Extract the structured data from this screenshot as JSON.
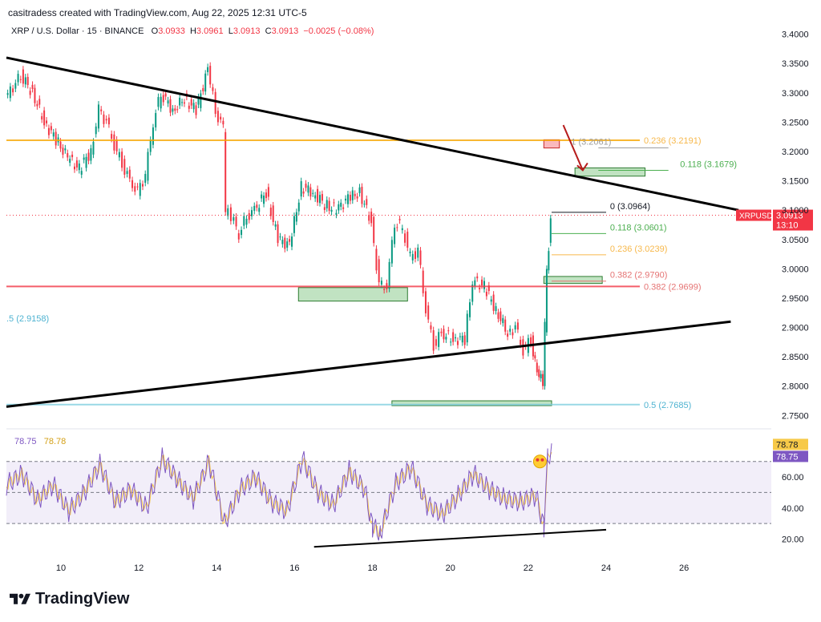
{
  "header": {
    "created_by": "casitradess created with TradingView.com, Aug 22, 2025 12:31 UTC-5"
  },
  "symbol": {
    "title": "XRP / U.S. Dollar · 15 · BINANCE",
    "o_label": "O",
    "o": "3.0933",
    "h_label": "H",
    "h": "3.0961",
    "l_label": "L",
    "l": "3.0913",
    "c_label": "C",
    "c": "3.0913",
    "change": "−0.0025 (−0.08%)"
  },
  "price_badge": {
    "symbol": "XRPUSD",
    "price": "3.0913",
    "countdown": "13:10"
  },
  "rsi": {
    "value1": "78.75",
    "value2": "78.78"
  },
  "footer": {
    "brand": "TradingView"
  },
  "colors": {
    "up": "#089981",
    "down": "#f23645",
    "orange": "#f7a600",
    "fib_orange": "#f7b84b",
    "fib_green": "#4caf50",
    "fib_red": "#ef9a9a",
    "cyan": "#80cfe0",
    "rsi_line": "#7e57c2",
    "rsi_ma": "#f7c948"
  },
  "chart_data": {
    "type": "candlestick",
    "y_ticks": [
      "3.4000",
      "3.3500",
      "3.3000",
      "3.2500",
      "3.2000",
      "3.1500",
      "3.1000",
      "3.0500",
      "3.0000",
      "2.9500",
      "2.9000",
      "2.8500",
      "2.8000",
      "2.7500"
    ],
    "ylim": [
      2.745,
      3.42
    ],
    "x_ticks": [
      "10",
      "12",
      "14",
      "16",
      "18",
      "20",
      "22",
      "24",
      "26"
    ],
    "x_day_range": [
      8.6,
      28.2
    ],
    "closes": [
      [
        8.6,
        3.29
      ],
      [
        9.0,
        3.33
      ],
      [
        9.3,
        3.3
      ],
      [
        9.6,
        3.25
      ],
      [
        9.9,
        3.22
      ],
      [
        10.2,
        3.19
      ],
      [
        10.5,
        3.17
      ],
      [
        10.8,
        3.2
      ],
      [
        11.0,
        3.27
      ],
      [
        11.2,
        3.25
      ],
      [
        11.4,
        3.21
      ],
      [
        11.6,
        3.18
      ],
      [
        11.8,
        3.15
      ],
      [
        12.0,
        3.13
      ],
      [
        12.2,
        3.16
      ],
      [
        12.4,
        3.25
      ],
      [
        12.6,
        3.3
      ],
      [
        12.9,
        3.27
      ],
      [
        13.2,
        3.29
      ],
      [
        13.5,
        3.27
      ],
      [
        13.8,
        3.34
      ],
      [
        14.0,
        3.27
      ],
      [
        14.2,
        3.24
      ],
      [
        14.25,
        3.1
      ],
      [
        14.4,
        3.09
      ],
      [
        14.6,
        3.06
      ],
      [
        14.8,
        3.09
      ],
      [
        15.0,
        3.1
      ],
      [
        15.3,
        3.13
      ],
      [
        15.6,
        3.05
      ],
      [
        15.9,
        3.04
      ],
      [
        16.2,
        3.14
      ],
      [
        16.5,
        3.13
      ],
      [
        16.8,
        3.11
      ],
      [
        17.1,
        3.1
      ],
      [
        17.4,
        3.12
      ],
      [
        17.7,
        3.13
      ],
      [
        18.0,
        3.08
      ],
      [
        18.2,
        2.97
      ],
      [
        18.4,
        2.97
      ],
      [
        18.6,
        3.08
      ],
      [
        18.8,
        3.07
      ],
      [
        19.0,
        3.02
      ],
      [
        19.2,
        3.03
      ],
      [
        19.4,
        2.93
      ],
      [
        19.6,
        2.87
      ],
      [
        19.8,
        2.89
      ],
      [
        20.1,
        2.88
      ],
      [
        20.4,
        2.88
      ],
      [
        20.6,
        2.98
      ],
      [
        20.9,
        2.97
      ],
      [
        21.2,
        2.93
      ],
      [
        21.5,
        2.89
      ],
      [
        21.7,
        2.9
      ],
      [
        21.9,
        2.86
      ],
      [
        22.1,
        2.88
      ],
      [
        22.2,
        2.84
      ],
      [
        22.3,
        2.82
      ],
      [
        22.4,
        2.81
      ],
      [
        22.45,
        2.9
      ],
      [
        22.5,
        3.0
      ],
      [
        22.55,
        3.04
      ],
      [
        22.6,
        3.0913
      ]
    ],
    "trendlines": [
      {
        "from": [
          8.6,
          3.36
        ],
        "to": [
          27.4,
          3.1
        ]
      },
      {
        "from": [
          8.6,
          2.765
        ],
        "to": [
          27.2,
          2.91
        ]
      }
    ],
    "horizontal_levels": [
      {
        "label": "0.236",
        "price": "3.2191",
        "value": 3.2191
      },
      {
        "label": "0.382",
        "price": "2.9699",
        "value": 2.9699
      },
      {
        "label": "0.5",
        "price": "2.7685",
        "value": 2.7685
      },
      {
        "label": ".5",
        "price": "2.9158",
        "value": 2.9158
      }
    ],
    "fib_small": [
      {
        "label": "1",
        "price": "3.2061",
        "value": 3.2061
      },
      {
        "label": "0.118",
        "price": "3.1679",
        "value": 3.1679
      },
      {
        "label": "0",
        "price": "3.0964",
        "value": 3.0964
      },
      {
        "label": "0.118",
        "price": "3.0601",
        "value": 3.0601
      },
      {
        "label": "0.236",
        "price": "3.0239",
        "value": 3.0239
      },
      {
        "label": "0.382",
        "price": "2.9790",
        "value": 2.979
      }
    ],
    "zones": [
      {
        "type": "demand",
        "from_day": 16.1,
        "to_day": 18.9,
        "low": 2.945,
        "high": 2.968
      },
      {
        "type": "demand",
        "from_day": 18.5,
        "to_day": 22.6,
        "low": 2.767,
        "high": 2.775
      },
      {
        "type": "demand",
        "from_day": 22.4,
        "to_day": 23.9,
        "low": 2.975,
        "high": 2.987
      },
      {
        "type": "demand",
        "from_day": 23.2,
        "to_day": 25.0,
        "low": 3.158,
        "high": 3.172
      },
      {
        "type": "supply",
        "from_day": 22.4,
        "to_day": 22.8,
        "low": 3.206,
        "high": 3.22
      }
    ],
    "rsi_ticks": [
      "60.00",
      "40.00",
      "20.00"
    ],
    "rsi_ylim": [
      12,
      90
    ],
    "rsi_bands": [
      30,
      50,
      70
    ],
    "rsi_values": [
      [
        8.6,
        55
      ],
      [
        9.0,
        62
      ],
      [
        9.4,
        45
      ],
      [
        9.8,
        55
      ],
      [
        10.2,
        38
      ],
      [
        10.6,
        50
      ],
      [
        11.0,
        68
      ],
      [
        11.4,
        44
      ],
      [
        11.8,
        52
      ],
      [
        12.2,
        40
      ],
      [
        12.6,
        72
      ],
      [
        13.0,
        58
      ],
      [
        13.4,
        46
      ],
      [
        13.8,
        70
      ],
      [
        14.2,
        30
      ],
      [
        14.6,
        52
      ],
      [
        15.0,
        60
      ],
      [
        15.4,
        44
      ],
      [
        15.8,
        38
      ],
      [
        16.2,
        72
      ],
      [
        16.6,
        50
      ],
      [
        17.0,
        42
      ],
      [
        17.4,
        64
      ],
      [
        17.8,
        52
      ],
      [
        18.0,
        28
      ],
      [
        18.2,
        24
      ],
      [
        18.6,
        56
      ],
      [
        19.0,
        66
      ],
      [
        19.4,
        42
      ],
      [
        19.8,
        36
      ],
      [
        20.2,
        48
      ],
      [
        20.6,
        62
      ],
      [
        21.0,
        52
      ],
      [
        21.4,
        46
      ],
      [
        21.8,
        44
      ],
      [
        22.2,
        48
      ],
      [
        22.4,
        28
      ],
      [
        22.5,
        72
      ],
      [
        22.6,
        78.75
      ]
    ]
  }
}
